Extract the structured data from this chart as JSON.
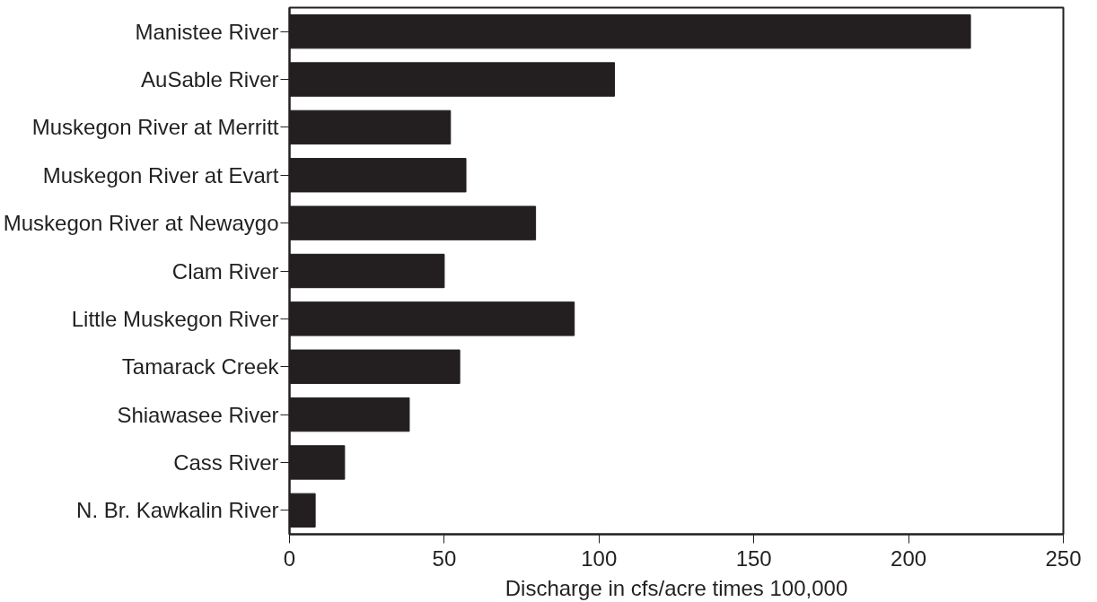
{
  "chart_data": {
    "type": "bar",
    "orientation": "horizontal",
    "xlabel": "Discharge in cfs/acre times 100,000",
    "categories": [
      "Manistee River",
      "AuSable River",
      "Muskegon River at Merritt",
      "Muskegon River at Evart",
      "Muskegon River at Newaygo",
      "Clam River",
      "Little Muskegon River",
      "Tamarack Creek",
      "Shiawasee River",
      "Cass River",
      "N. Br. Kawkalin River"
    ],
    "values": [
      220,
      105,
      52,
      57,
      79.5,
      50,
      92,
      55,
      38.7,
      17.8,
      8.3
    ],
    "color": "#231f20",
    "xlim": [
      0,
      250
    ],
    "xticks": [
      0,
      50,
      100,
      150,
      200,
      250
    ],
    "grid": false
  }
}
